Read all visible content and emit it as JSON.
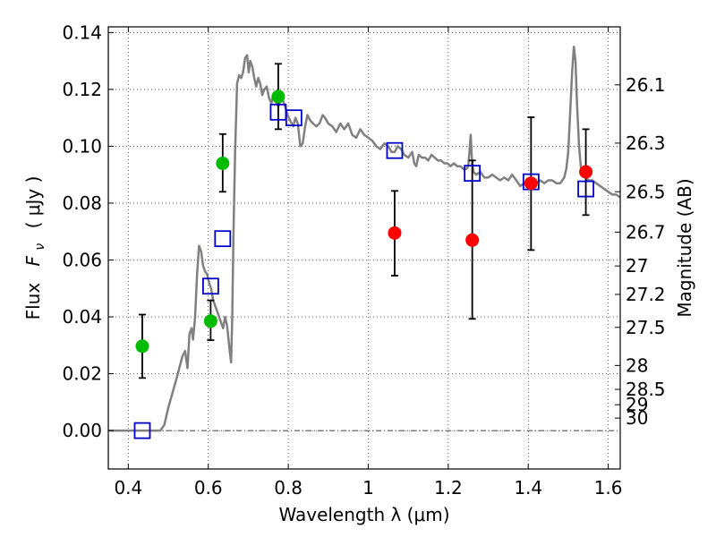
{
  "chart_data": {
    "type": "scatter",
    "xlabel": "Wavelength  λ (μm)",
    "ylabel_text": "Flux",
    "ylabel_math": "F",
    "ylabel_sub": "ν",
    "ylabel_unit": "( μJy )",
    "ylabel2": "Magnitude (AB)",
    "xlim": [
      0.35,
      1.63
    ],
    "ylim": [
      -0.0135,
      0.142
    ],
    "grid": true,
    "x_ticks": [
      {
        "value": 0.4,
        "label": "0.4"
      },
      {
        "value": 0.6,
        "label": "0.6"
      },
      {
        "value": 0.8,
        "label": "0.8"
      },
      {
        "value": 1.0,
        "label": "1"
      },
      {
        "value": 1.2,
        "label": "1.2"
      },
      {
        "value": 1.4,
        "label": "1.4"
      },
      {
        "value": 1.6,
        "label": "1.6"
      }
    ],
    "y_ticks": [
      {
        "value": 0.0,
        "label": "0.00"
      },
      {
        "value": 0.02,
        "label": "0.02"
      },
      {
        "value": 0.04,
        "label": "0.04"
      },
      {
        "value": 0.06,
        "label": "0.06"
      },
      {
        "value": 0.08,
        "label": "0.08"
      },
      {
        "value": 0.1,
        "label": "0.10"
      },
      {
        "value": 0.12,
        "label": "0.12"
      },
      {
        "value": 0.14,
        "label": "0.14"
      }
    ],
    "mag_ticks": [
      {
        "flux": 0.1216,
        "label": "26.1"
      },
      {
        "flux": 0.1011,
        "label": "26.3"
      },
      {
        "flux": 0.084,
        "label": "26.5"
      },
      {
        "flux": 0.0698,
        "label": "26.7"
      },
      {
        "flux": 0.0579,
        "label": "27"
      },
      {
        "flux": 0.0479,
        "label": "27.2"
      },
      {
        "flux": 0.0363,
        "label": "27.5"
      },
      {
        "flux": 0.0229,
        "label": "28"
      },
      {
        "flux": 0.0145,
        "label": "28.5"
      },
      {
        "flux": 0.0091,
        "label": "29"
      },
      {
        "flux": 0.0044,
        "label": "30"
      }
    ],
    "model_spectrum": {
      "color": "#808080",
      "points": [
        [
          0.35,
          0.0
        ],
        [
          0.48,
          0.0
        ],
        [
          0.49,
          0.002
        ],
        [
          0.5,
          0.008
        ],
        [
          0.52,
          0.018
        ],
        [
          0.535,
          0.026
        ],
        [
          0.542,
          0.028
        ],
        [
          0.548,
          0.022
        ],
        [
          0.553,
          0.034
        ],
        [
          0.558,
          0.036
        ],
        [
          0.562,
          0.032
        ],
        [
          0.567,
          0.04
        ],
        [
          0.572,
          0.055
        ],
        [
          0.577,
          0.065
        ],
        [
          0.582,
          0.063
        ],
        [
          0.587,
          0.058
        ],
        [
          0.592,
          0.056
        ],
        [
          0.597,
          0.055
        ],
        [
          0.602,
          0.052
        ],
        [
          0.607,
          0.05
        ],
        [
          0.612,
          0.046
        ],
        [
          0.617,
          0.044
        ],
        [
          0.622,
          0.042
        ],
        [
          0.627,
          0.04
        ],
        [
          0.632,
          0.038
        ],
        [
          0.637,
          0.036
        ],
        [
          0.642,
          0.04
        ],
        [
          0.647,
          0.037
        ],
        [
          0.652,
          0.03
        ],
        [
          0.657,
          0.024
        ],
        [
          0.66,
          0.04
        ],
        [
          0.663,
          0.07
        ],
        [
          0.667,
          0.098
        ],
        [
          0.672,
          0.122
        ],
        [
          0.677,
          0.125
        ],
        [
          0.682,
          0.124
        ],
        [
          0.687,
          0.126
        ],
        [
          0.692,
          0.131
        ],
        [
          0.697,
          0.132
        ],
        [
          0.701,
          0.126
        ],
        [
          0.705,
          0.13
        ],
        [
          0.71,
          0.128
        ],
        [
          0.715,
          0.124
        ],
        [
          0.72,
          0.121
        ],
        [
          0.725,
          0.124
        ],
        [
          0.73,
          0.122
        ],
        [
          0.735,
          0.118
        ],
        [
          0.74,
          0.12
        ],
        [
          0.746,
          0.121
        ],
        [
          0.752,
          0.117
        ],
        [
          0.758,
          0.115
        ],
        [
          0.762,
          0.118
        ],
        [
          0.767,
          0.116
        ],
        [
          0.775,
          0.114
        ],
        [
          0.783,
          0.117
        ],
        [
          0.79,
          0.115
        ],
        [
          0.798,
          0.111
        ],
        [
          0.805,
          0.109
        ],
        [
          0.812,
          0.107
        ],
        [
          0.818,
          0.11
        ],
        [
          0.824,
          0.108
        ],
        [
          0.83,
          0.1
        ],
        [
          0.836,
          0.101
        ],
        [
          0.842,
          0.107
        ],
        [
          0.848,
          0.111
        ],
        [
          0.855,
          0.109
        ],
        [
          0.862,
          0.108
        ],
        [
          0.87,
          0.107
        ],
        [
          0.878,
          0.108
        ],
        [
          0.886,
          0.111
        ],
        [
          0.892,
          0.11
        ],
        [
          0.9,
          0.108
        ],
        [
          0.91,
          0.107
        ],
        [
          0.92,
          0.105
        ],
        [
          0.93,
          0.108
        ],
        [
          0.94,
          0.106
        ],
        [
          0.95,
          0.108
        ],
        [
          0.96,
          0.104
        ],
        [
          0.97,
          0.103
        ],
        [
          0.98,
          0.106
        ],
        [
          0.99,
          0.104
        ],
        [
          1.0,
          0.103
        ],
        [
          1.01,
          0.102
        ],
        [
          1.02,
          0.1
        ],
        [
          1.03,
          0.099
        ],
        [
          1.04,
          0.101
        ],
        [
          1.05,
          0.1
        ],
        [
          1.058,
          0.098
        ],
        [
          1.066,
          0.098
        ],
        [
          1.074,
          0.1
        ],
        [
          1.082,
          0.099
        ],
        [
          1.09,
          0.097
        ],
        [
          1.1,
          0.096
        ],
        [
          1.11,
          0.098
        ],
        [
          1.115,
          0.094
        ],
        [
          1.12,
          0.093
        ],
        [
          1.126,
          0.097
        ],
        [
          1.134,
          0.096
        ],
        [
          1.142,
          0.096
        ],
        [
          1.15,
          0.095
        ],
        [
          1.158,
          0.097
        ],
        [
          1.166,
          0.096
        ],
        [
          1.174,
          0.095
        ],
        [
          1.182,
          0.095
        ],
        [
          1.19,
          0.094
        ],
        [
          1.198,
          0.094
        ],
        [
          1.206,
          0.093
        ],
        [
          1.214,
          0.094
        ],
        [
          1.222,
          0.093
        ],
        [
          1.23,
          0.093
        ],
        [
          1.238,
          0.092
        ],
        [
          1.245,
          0.092
        ],
        [
          1.25,
          0.093
        ],
        [
          1.253,
          0.098
        ],
        [
          1.256,
          0.104
        ],
        [
          1.259,
          0.096
        ],
        [
          1.263,
          0.091
        ],
        [
          1.27,
          0.09
        ],
        [
          1.28,
          0.091
        ],
        [
          1.29,
          0.089
        ],
        [
          1.3,
          0.089
        ],
        [
          1.31,
          0.09
        ],
        [
          1.32,
          0.089
        ],
        [
          1.33,
          0.088
        ],
        [
          1.34,
          0.089
        ],
        [
          1.35,
          0.088
        ],
        [
          1.36,
          0.09
        ],
        [
          1.37,
          0.088
        ],
        [
          1.38,
          0.086
        ],
        [
          1.39,
          0.087
        ],
        [
          1.4,
          0.088
        ],
        [
          1.41,
          0.088
        ],
        [
          1.42,
          0.087
        ],
        [
          1.43,
          0.088
        ],
        [
          1.44,
          0.087
        ],
        [
          1.45,
          0.088
        ],
        [
          1.46,
          0.088
        ],
        [
          1.47,
          0.087
        ],
        [
          1.48,
          0.087
        ],
        [
          1.49,
          0.089
        ],
        [
          1.495,
          0.092
        ],
        [
          1.5,
          0.098
        ],
        [
          1.505,
          0.112
        ],
        [
          1.51,
          0.127
        ],
        [
          1.514,
          0.135
        ],
        [
          1.518,
          0.13
        ],
        [
          1.522,
          0.115
        ],
        [
          1.527,
          0.1
        ],
        [
          1.532,
          0.092
        ],
        [
          1.54,
          0.09
        ],
        [
          1.55,
          0.088
        ],
        [
          1.56,
          0.088
        ],
        [
          1.57,
          0.087
        ],
        [
          1.58,
          0.086
        ],
        [
          1.59,
          0.085
        ],
        [
          1.6,
          0.084
        ],
        [
          1.61,
          0.083
        ],
        [
          1.62,
          0.083
        ],
        [
          1.63,
          0.082
        ]
      ]
    },
    "model_photometry": {
      "marker": "open-square",
      "color": "#0000cc",
      "points": [
        [
          0.435,
          0.0
        ],
        [
          0.606,
          0.0508
        ],
        [
          0.636,
          0.0675
        ],
        [
          0.775,
          0.112
        ],
        [
          0.814,
          0.11
        ],
        [
          1.066,
          0.0985
        ],
        [
          1.26,
          0.0905
        ],
        [
          1.407,
          0.0875
        ],
        [
          1.544,
          0.085
        ]
      ]
    },
    "observed_optical": {
      "marker": "filled-circle",
      "color": "#00bb00",
      "points": [
        {
          "x": 0.435,
          "y": 0.0297,
          "err_low": 0.0185,
          "err_high": 0.0408
        },
        {
          "x": 0.606,
          "y": 0.0385,
          "err_low": 0.0318,
          "err_high": 0.0458
        },
        {
          "x": 0.636,
          "y": 0.094,
          "err_low": 0.084,
          "err_high": 0.1043
        },
        {
          "x": 0.775,
          "y": 0.1175,
          "err_low": 0.106,
          "err_high": 0.129
        }
      ]
    },
    "observed_nir": {
      "marker": "filled-circle",
      "color": "#ff0000",
      "points": [
        {
          "x": 1.066,
          "y": 0.0695,
          "err_low": 0.0545,
          "err_high": 0.0843
        },
        {
          "x": 1.26,
          "y": 0.067,
          "err_low": 0.0393,
          "err_high": 0.095
        },
        {
          "x": 1.407,
          "y": 0.087,
          "err_low": 0.0635,
          "err_high": 0.1102
        },
        {
          "x": 1.544,
          "y": 0.091,
          "err_low": 0.0758,
          "err_high": 0.106
        }
      ]
    }
  }
}
